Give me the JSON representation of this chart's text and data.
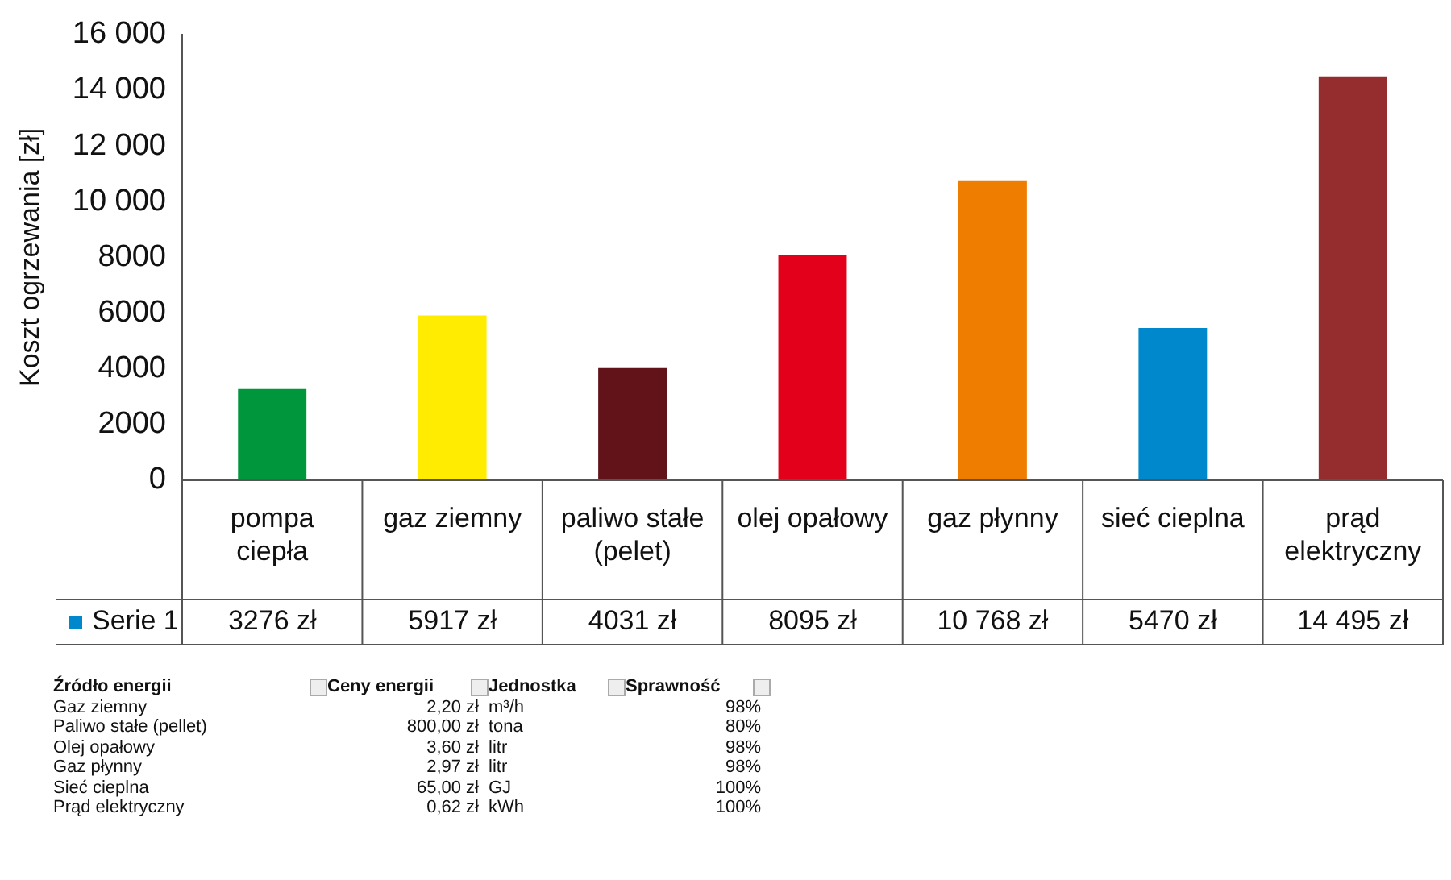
{
  "chart_data": {
    "type": "bar",
    "ylabel": "Koszt ogrzewania [zł]",
    "categories": [
      "pompa ciepła",
      "gaz ziemny",
      "paliwo stałe (pelet)",
      "olej opałowy",
      "gaz płynny",
      "sieć cieplna",
      "prąd elektryczny"
    ],
    "series": [
      {
        "name": "Serie 1",
        "color": "#0088cc",
        "colors": [
          "#00963c",
          "#ffec00",
          "#62131a",
          "#e2001a",
          "#ef7d00",
          "#0088cc",
          "#952c2e"
        ],
        "values": [
          3276,
          5917,
          4031,
          8095,
          10768,
          5470,
          14495
        ],
        "value_labels": [
          "3276 zł",
          "5917 zł",
          "4031 zł",
          "8095 zł",
          "10 768 zł",
          "5470 zł",
          "14 495 zł"
        ]
      }
    ],
    "ylim": [
      0,
      16000
    ],
    "yticks": [
      0,
      2000,
      4000,
      6000,
      8000,
      {
        "value": 10000,
        "label": "10 000"
      },
      {
        "value": 12000,
        "label": "12 000"
      },
      {
        "value": 14000,
        "label": "14 000"
      },
      {
        "value": 16000,
        "label": "16 000"
      }
    ],
    "grid": false,
    "legend": "bottom left",
    "annotations": [
      "Źródło energii",
      "Ceny energii",
      "Jednostka",
      "Sprawność",
      "Gaz ziemny",
      "2,20 zł",
      "m³/h",
      "98%",
      "Paliwo stałe (pellet)",
      "800,00 zł",
      "tona",
      "80%",
      "Olej opałowy",
      "3,60 zł",
      "litr",
      "98%",
      "Gaz płynny",
      "2,97 zł",
      "litr",
      "98%",
      "Sieć cieplna",
      "65,00 zł",
      "GJ",
      "100%",
      "Prąd elektryczny",
      "0,62 zł",
      "kWh",
      "100%"
    ]
  }
}
